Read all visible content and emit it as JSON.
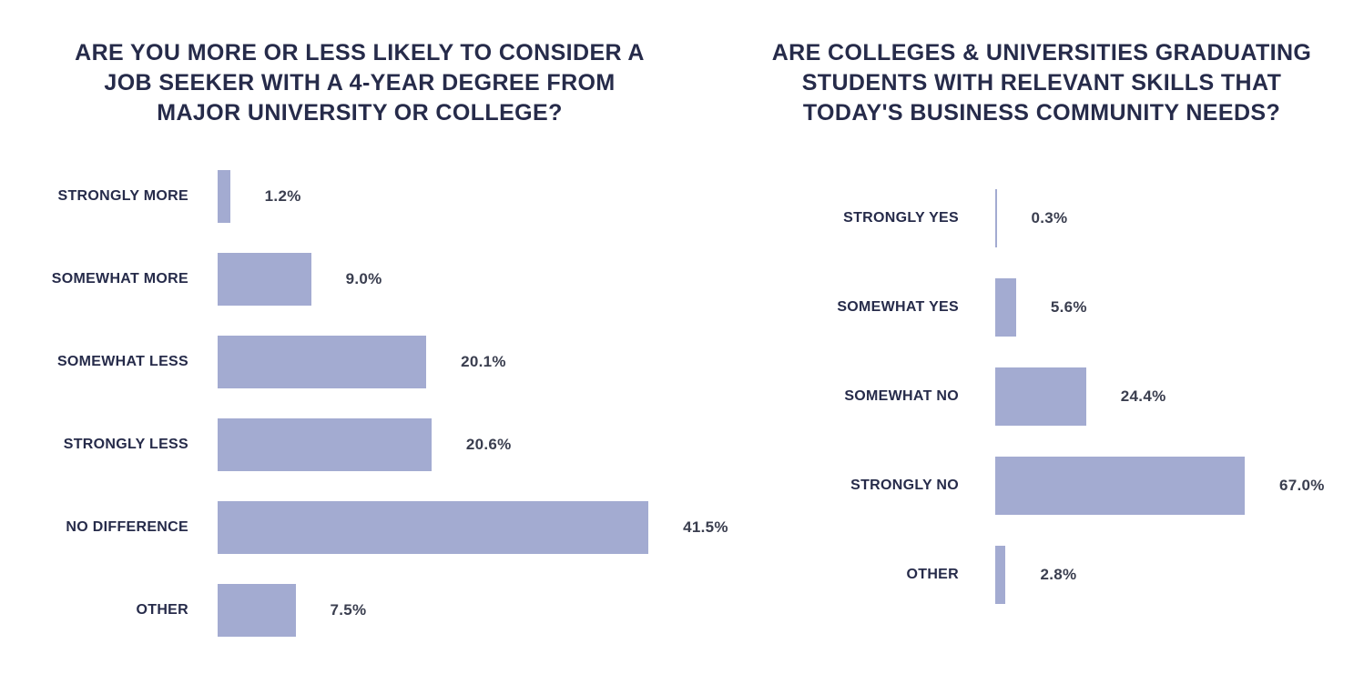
{
  "page": {
    "background_color": "#ffffff",
    "title_color": "#262b4a",
    "category_label_color": "#262b4a",
    "value_label_color": "#3a3e4f"
  },
  "chart_data": [
    {
      "type": "bar",
      "orientation": "horizontal",
      "title": "ARE YOU MORE OR LESS LIKELY TO CONSIDER A JOB SEEKER WITH A 4-YEAR DEGREE FROM MAJOR UNIVERSITY OR COLLEGE?",
      "title_display": "ARE YOU MORE OR LESS LIKELY TO CONSIDER A\nJOB SEEKER WITH A 4-YEAR DEGREE FROM\nMAJOR UNIVERSITY OR COLLEGE?",
      "categories": [
        "STRONGLY MORE",
        "SOMEWHAT MORE",
        "SOMEWHAT LESS",
        "STRONGLY LESS",
        "NO DIFFERENCE",
        "OTHER"
      ],
      "values": [
        1.2,
        9.0,
        20.1,
        20.6,
        41.5,
        7.5
      ],
      "value_labels": [
        "1.2%",
        "9.0%",
        "20.1%",
        "20.6%",
        "41.5%",
        "7.5%"
      ],
      "unit": "%",
      "xlim": [
        0,
        41.5
      ],
      "bar_color": "#a3abd1",
      "grid": false,
      "legend": false
    },
    {
      "type": "bar",
      "orientation": "horizontal",
      "title": "ARE COLLEGES & UNIVERSITIES GRADUATING STUDENTS WITH RELEVANT SKILLS THAT TODAY'S BUSINESS COMMUNITY NEEDS?",
      "title_display": "ARE COLLEGES & UNIVERSITIES GRADUATING\nSTUDENTS WITH RELEVANT SKILLS THAT\nTODAY'S BUSINESS COMMUNITY NEEDS?",
      "categories": [
        "STRONGLY YES",
        "SOMEWHAT YES",
        "SOMEWHAT NO",
        "STRONGLY NO",
        "OTHER"
      ],
      "values": [
        0.3,
        5.6,
        24.4,
        67.0,
        2.8
      ],
      "value_labels": [
        "0.3%",
        "5.6%",
        "24.4%",
        "67.0%",
        "2.8%"
      ],
      "unit": "%",
      "xlim": [
        0,
        67.0
      ],
      "bar_color": "#a3abd1",
      "grid": false,
      "legend": false
    }
  ]
}
